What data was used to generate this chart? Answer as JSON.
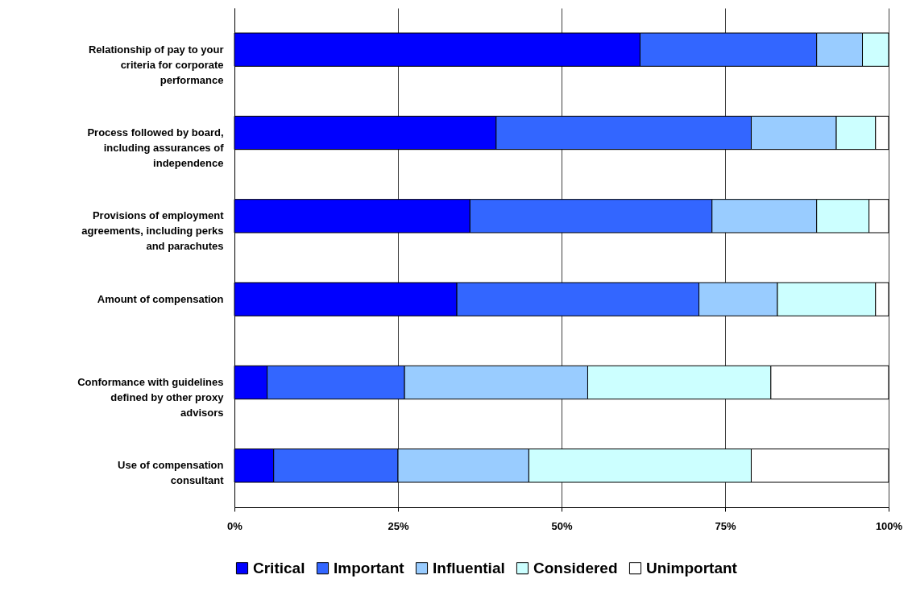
{
  "chart_data": {
    "type": "bar",
    "orientation": "horizontal",
    "stacked": true,
    "categories": [
      "Relationship of pay to your criteria for corporate performance",
      "Process followed by board, including assurances of independence",
      "Provisions of employment agreements, including perks and parachutes",
      "Amount of compensation",
      "Conformance with guidelines defined by other proxy advisors",
      "Use of compensation consultant"
    ],
    "series": [
      {
        "name": "Critical",
        "color": "#0000ff",
        "values": [
          62,
          40,
          36,
          34,
          5,
          6
        ]
      },
      {
        "name": "Important",
        "color": "#3366ff",
        "values": [
          27,
          39,
          37,
          37,
          21,
          19
        ]
      },
      {
        "name": "Influential",
        "color": "#99ccff",
        "values": [
          7,
          13,
          16,
          12,
          28,
          20
        ]
      },
      {
        "name": "Considered",
        "color": "#ccffff",
        "values": [
          4,
          6,
          8,
          15,
          28,
          34
        ]
      },
      {
        "name": "Unimportant",
        "color": "#ffffff",
        "values": [
          0,
          2,
          3,
          2,
          18,
          21
        ]
      }
    ],
    "xlim": [
      0,
      100
    ],
    "xticks": [
      {
        "value": 0,
        "label": "0%"
      },
      {
        "value": 25,
        "label": "25%"
      },
      {
        "value": 50,
        "label": "50%"
      },
      {
        "value": 75,
        "label": "75%"
      },
      {
        "value": 100,
        "label": "100%"
      }
    ],
    "grid": "x",
    "legend": "bottom"
  }
}
